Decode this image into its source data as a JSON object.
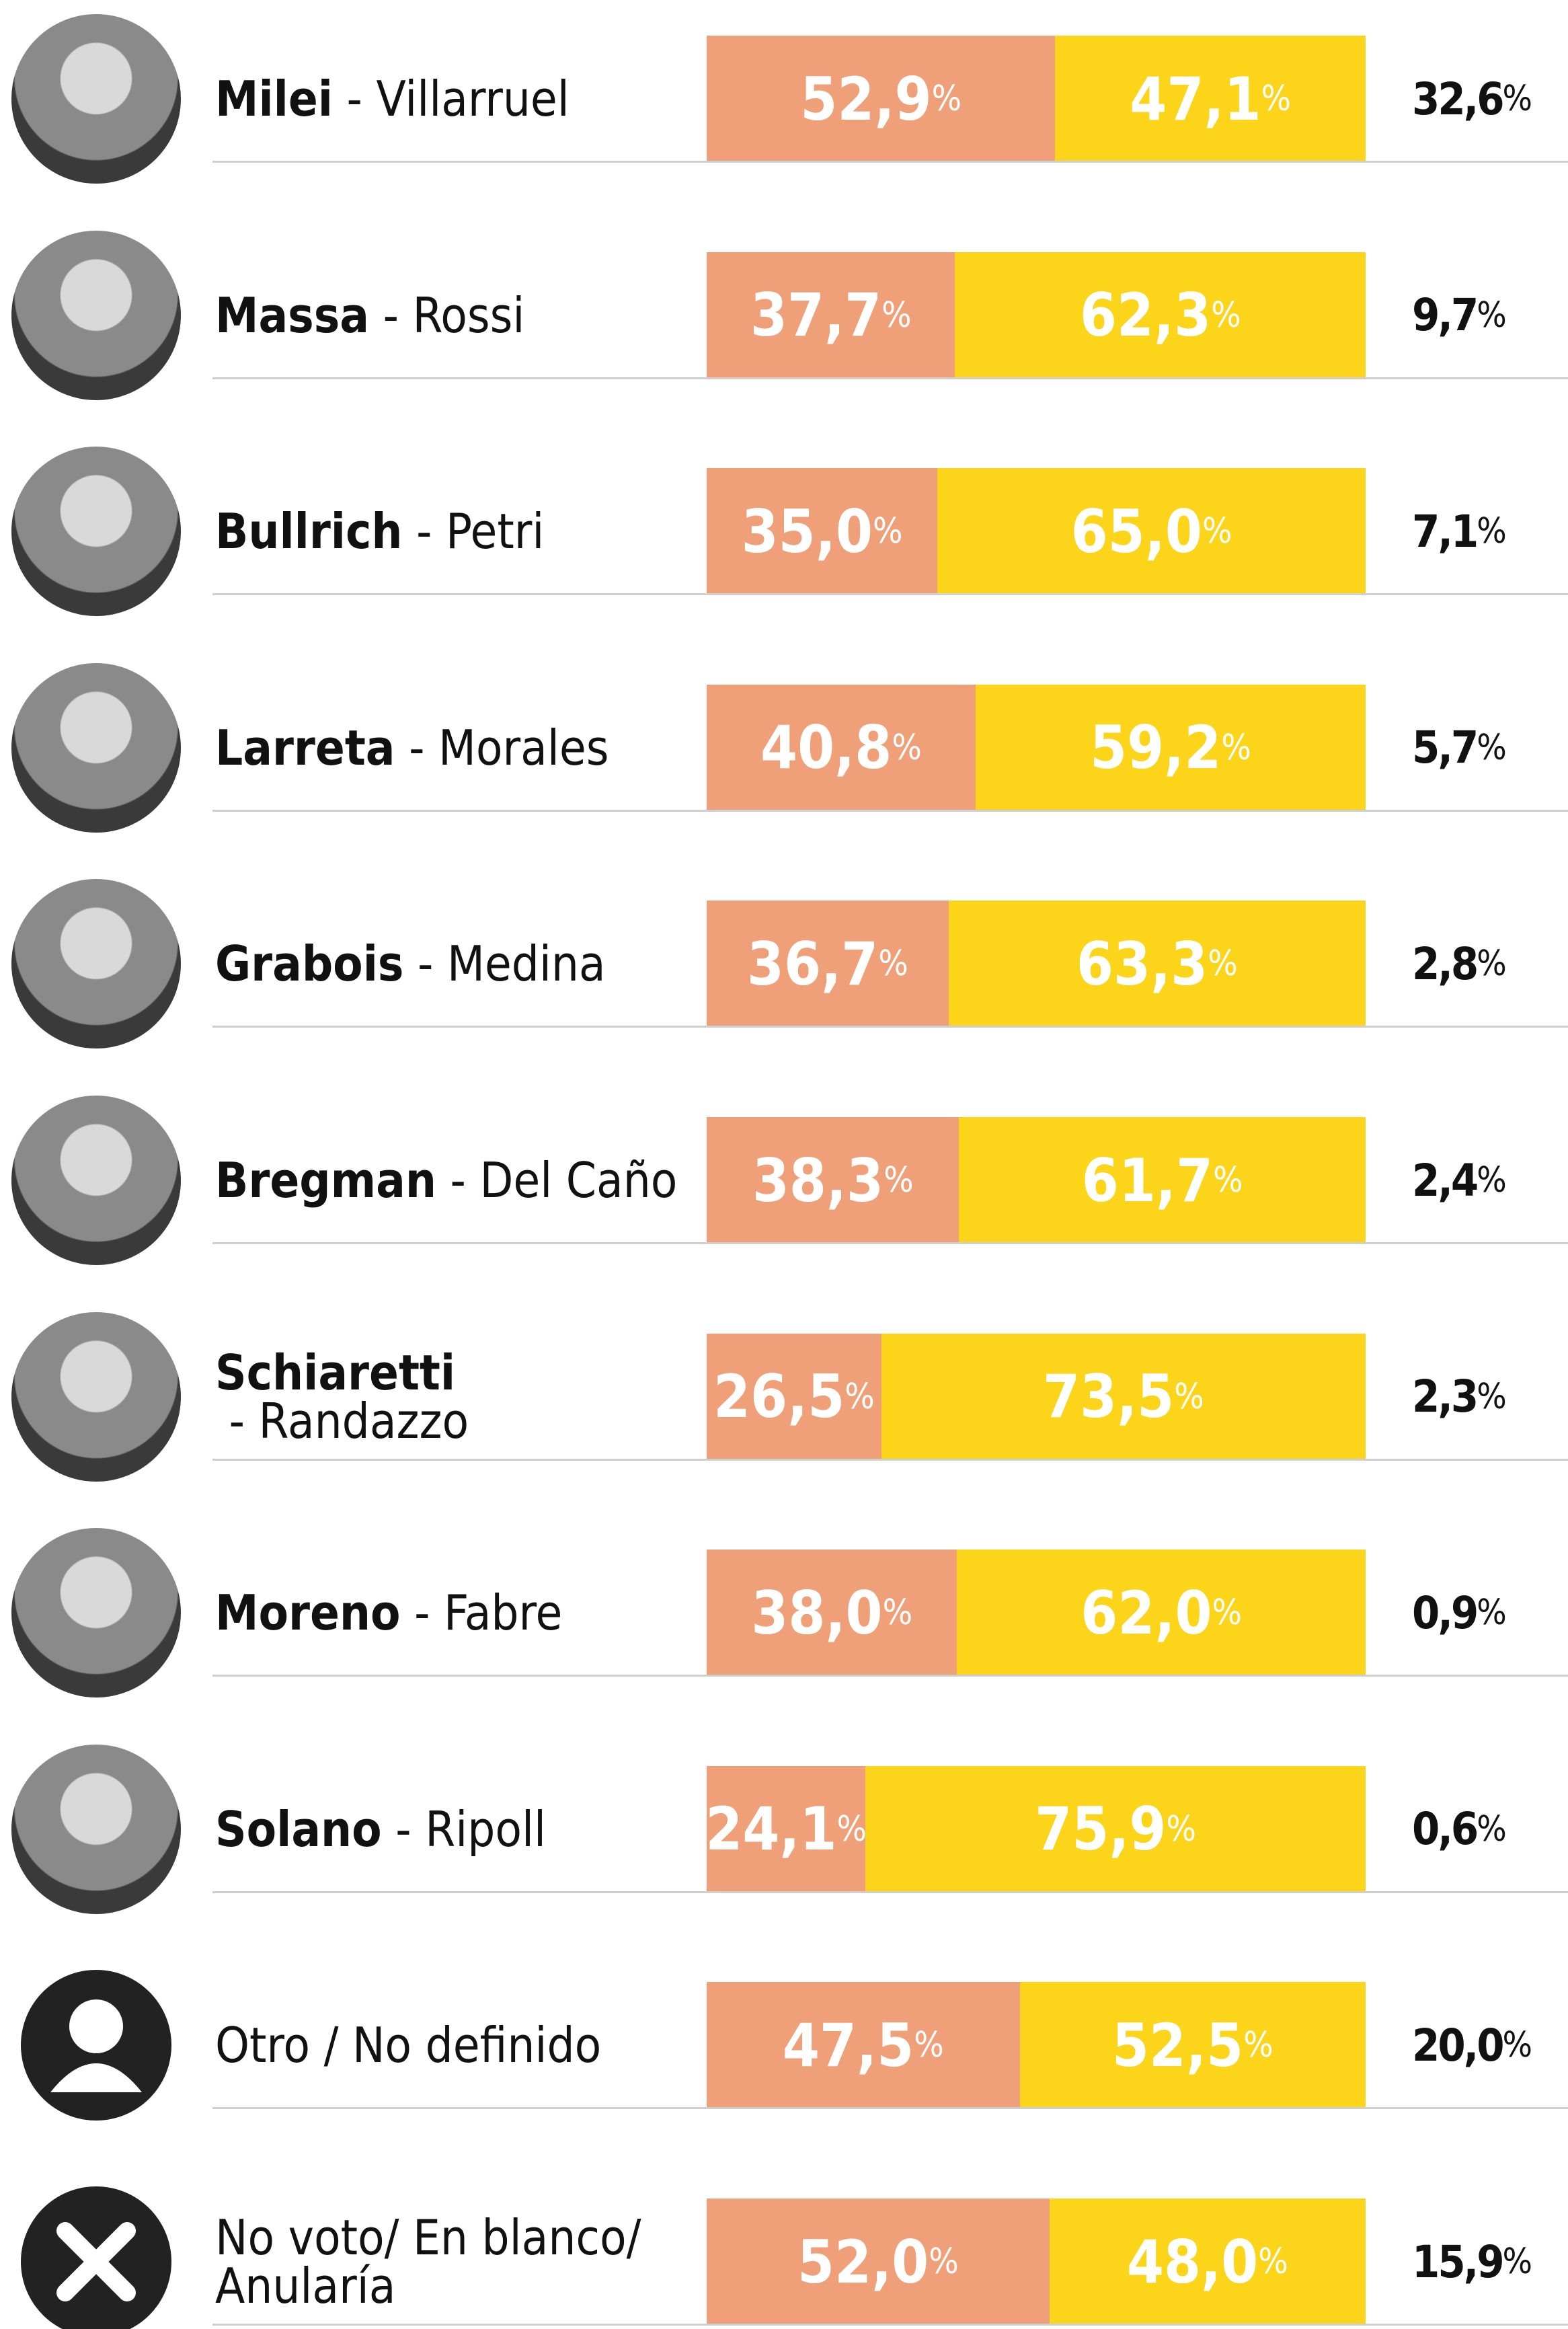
{
  "chart_data": {
    "type": "bar",
    "orientation": "horizontal",
    "stacked": true,
    "categories": [
      "Milei - Villarruel",
      "Massa - Rossi",
      "Bullrich - Petri",
      "Larreta - Morales",
      "Grabois - Medina",
      "Bregman - Del Caño",
      "Schiaretti - Randazzo",
      "Moreno - Fabre",
      "Solano - Ripoll",
      "Otro / No definido",
      "No voto/ En blanco/ Anularía"
    ],
    "series": [
      {
        "color": "#f0a078",
        "values": [
          52.9,
          37.7,
          35.0,
          40.8,
          36.7,
          38.3,
          26.5,
          38.0,
          24.1,
          47.5,
          52.0
        ],
        "value_labels": [
          "52,9%",
          "37,7%",
          "35,0%",
          "40,8%",
          "36,7%",
          "38,3%",
          "26,5%",
          "38,0%",
          "24,1%",
          "47,5%",
          "52,0%"
        ]
      },
      {
        "color": "#fcd419",
        "values": [
          47.1,
          62.3,
          65.0,
          59.2,
          63.3,
          61.7,
          73.5,
          62.0,
          75.9,
          52.5,
          48.0
        ],
        "value_labels": [
          "47,1%",
          "62,3%",
          "65,0%",
          "59,2%",
          "63,3%",
          "61,7%",
          "73,5%",
          "62,0%",
          "75,9%",
          "52,5%",
          "48,0%"
        ]
      }
    ],
    "totals": {
      "values": [
        32.6,
        9.7,
        7.1,
        5.7,
        2.8,
        2.4,
        2.3,
        0.9,
        0.6,
        20.0,
        15.9
      ],
      "value_labels": [
        "32,6%",
        "9,7%",
        "7,1%",
        "5,7%",
        "2,8%",
        "2,4%",
        "2,3%",
        "0,9%",
        "0,6%",
        "20,0%",
        "15,9%"
      ]
    }
  }
}
